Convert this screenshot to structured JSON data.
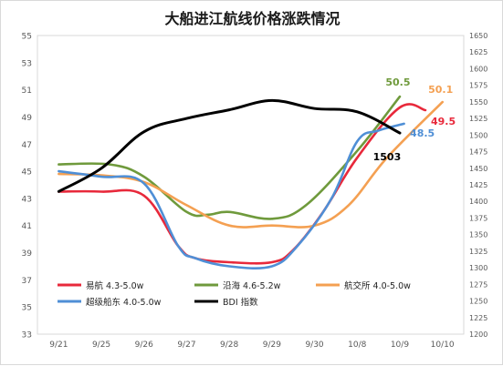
{
  "chart_data": {
    "type": "line",
    "title": "大船进江航线价格涨跌情况",
    "categories": [
      "9/21",
      "9/25",
      "9/26",
      "9/27",
      "9/28",
      "9/29",
      "9/30",
      "10/8",
      "10/9",
      "10/10"
    ],
    "y_left": {
      "min": 33,
      "max": 55,
      "step": 2
    },
    "y_right": {
      "min": 1200,
      "max": 1650,
      "step": 25
    },
    "grid": false,
    "legend_position": "bottom-left",
    "series": [
      {
        "name": "易航 4.3-5.0w",
        "axis": "left",
        "color": "#e8293b",
        "points": [
          [
            0,
            43.5
          ],
          [
            1,
            43.5
          ],
          [
            2,
            43.2
          ],
          [
            2.8,
            39.5
          ],
          [
            3.2,
            38.6
          ],
          [
            4,
            38.3
          ],
          [
            5,
            38.3
          ],
          [
            5.5,
            39.2
          ],
          [
            6.2,
            42
          ],
          [
            7,
            46
          ],
          [
            8,
            49.7
          ],
          [
            8.6,
            49.5
          ]
        ]
      },
      {
        "name": "沿海 4.6-5.2w",
        "axis": "left",
        "color": "#6f9a3c",
        "points": [
          [
            0,
            45.5
          ],
          [
            1.2,
            45.5
          ],
          [
            2,
            44.6
          ],
          [
            3,
            42
          ],
          [
            3.5,
            41.8
          ],
          [
            4,
            42
          ],
          [
            5,
            41.5
          ],
          [
            5.8,
            42.5
          ],
          [
            7,
            46.5
          ],
          [
            8,
            50.5
          ]
        ]
      },
      {
        "name": "航交所 4.0-5.0w",
        "axis": "left",
        "color": "#f4a052",
        "points": [
          [
            0,
            44.8
          ],
          [
            1,
            44.7
          ],
          [
            2,
            44.2
          ],
          [
            3,
            42.5
          ],
          [
            4,
            41
          ],
          [
            5,
            41
          ],
          [
            6,
            41
          ],
          [
            6.8,
            42.5
          ],
          [
            7.7,
            46
          ],
          [
            9,
            50.1
          ]
        ]
      },
      {
        "name": "超级船东 4.0-5.0w",
        "axis": "left",
        "color": "#4f8fd6",
        "points": [
          [
            0,
            45
          ],
          [
            1,
            44.6
          ],
          [
            2,
            44.1
          ],
          [
            2.8,
            39.5
          ],
          [
            3.2,
            38.6
          ],
          [
            4,
            38
          ],
          [
            5,
            38
          ],
          [
            5.6,
            39.5
          ],
          [
            6.4,
            43
          ],
          [
            7,
            47.2
          ],
          [
            7.5,
            48
          ],
          [
            8.1,
            48.5
          ]
        ]
      },
      {
        "name": "BDI 指数",
        "axis": "right",
        "color": "#000000",
        "points": [
          [
            0,
            1415
          ],
          [
            1,
            1450
          ],
          [
            2,
            1505
          ],
          [
            3,
            1525
          ],
          [
            4,
            1538
          ],
          [
            5,
            1552
          ],
          [
            6,
            1540
          ],
          [
            7,
            1535
          ],
          [
            8,
            1503
          ]
        ]
      }
    ],
    "annotations": [
      {
        "text": "50.5",
        "series": 1
      },
      {
        "text": "50.1",
        "series": 2
      },
      {
        "text": "49.5",
        "series": 0
      },
      {
        "text": "48.5",
        "series": 3
      },
      {
        "text": "1503",
        "series": 4
      }
    ]
  }
}
